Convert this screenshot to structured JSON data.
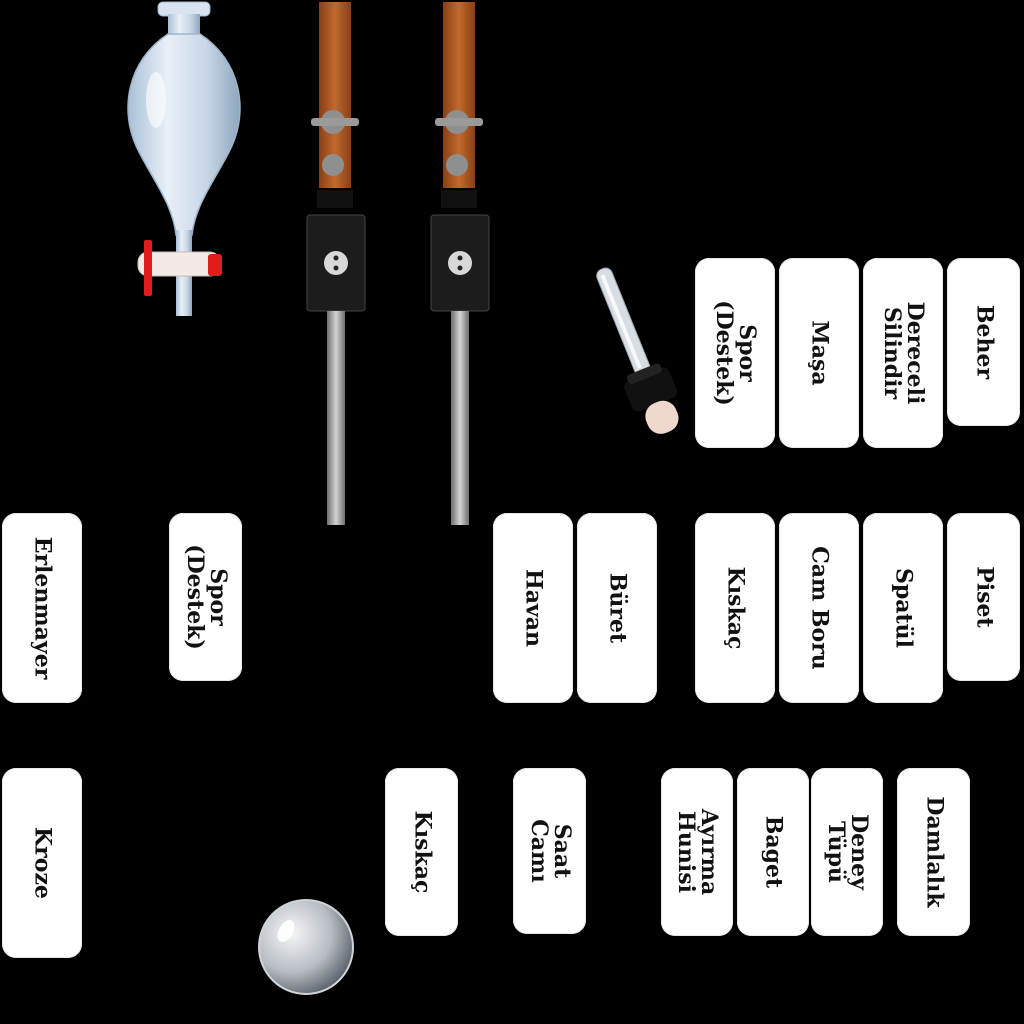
{
  "labels": {
    "beher": "Beher",
    "dereceli_silindir": "Dereceli\nSilindir",
    "masa": "Maşa",
    "spor_top": "Spor\n(Destek)",
    "erlenmayer": "Erlenmayer",
    "spor_left": "Spor\n(Destek)",
    "havan": "Havan",
    "buret": "Büret",
    "kiskac_mid": "Kıskaç",
    "cam_boru": "Cam Boru",
    "spatul": "Spatül",
    "piset": "Piset",
    "kroze": "Kroze",
    "kiskac_bottom": "Kıskaç",
    "saat_cami": "Saat\nCamı",
    "ayirma_hunisi": "Ayırma\nHunisi",
    "baget": "Baget",
    "deney_tupu": "Deney\nTüpü",
    "damlalik": "Damlalık"
  },
  "icons": {
    "separatory_funnel": "separatory-funnel-icon",
    "stand_clamp": "stand-clamp-icon",
    "dropper": "dropper-icon",
    "watch_glass": "watch-glass-icon"
  }
}
